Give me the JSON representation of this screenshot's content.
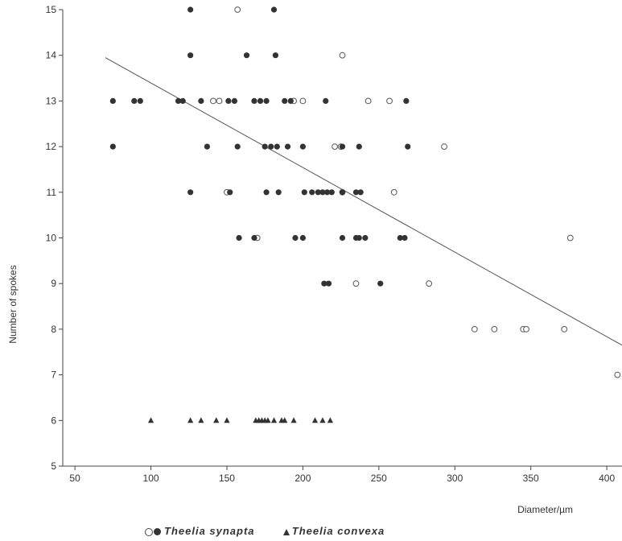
{
  "chart_data": {
    "type": "scatter",
    "title": "",
    "xlabel": "Diameter/µm",
    "ylabel": "Number of spokes",
    "xlim": [
      42,
      410
    ],
    "ylim": [
      5,
      15
    ],
    "x_ticks": [
      50,
      100,
      150,
      200,
      250,
      300,
      350,
      400
    ],
    "y_ticks": [
      5,
      6,
      7,
      8,
      9,
      10,
      11,
      12,
      13,
      14,
      15
    ],
    "grid": false,
    "legend_placement": "bottom",
    "legend": {
      "synapta_label": "Theelia synapta",
      "convexa_label": "Theelia convexa"
    },
    "trend_line": {
      "x": [
        70,
        410
      ],
      "y": [
        13.95,
        7.65
      ]
    },
    "series": [
      {
        "name": "Theelia synapta",
        "marker": "open-circle",
        "points": [
          [
            157,
            15
          ],
          [
            226,
            14
          ],
          [
            141,
            13
          ],
          [
            145,
            13
          ],
          [
            194,
            13
          ],
          [
            200,
            13
          ],
          [
            243,
            13
          ],
          [
            257,
            13
          ],
          [
            221,
            12
          ],
          [
            225,
            12
          ],
          [
            293,
            12
          ],
          [
            150,
            11
          ],
          [
            226,
            11
          ],
          [
            260,
            11
          ],
          [
            170,
            10
          ],
          [
            235,
            9
          ],
          [
            283,
            9
          ],
          [
            313,
            8
          ],
          [
            326,
            8
          ],
          [
            345,
            8
          ],
          [
            347,
            8
          ],
          [
            372,
            8
          ],
          [
            376,
            10
          ],
          [
            407,
            7
          ]
        ]
      },
      {
        "name": "Theelia synapta",
        "marker": "filled-circle",
        "points": [
          [
            126,
            15
          ],
          [
            181,
            15
          ],
          [
            126,
            14
          ],
          [
            163,
            14
          ],
          [
            182,
            14
          ],
          [
            75,
            13
          ],
          [
            89,
            13
          ],
          [
            93,
            13
          ],
          [
            118,
            13
          ],
          [
            121,
            13
          ],
          [
            133,
            13
          ],
          [
            151,
            13
          ],
          [
            155,
            13
          ],
          [
            168,
            13
          ],
          [
            172,
            13
          ],
          [
            176,
            13
          ],
          [
            188,
            13
          ],
          [
            192,
            13
          ],
          [
            215,
            13
          ],
          [
            268,
            13
          ],
          [
            75,
            12
          ],
          [
            137,
            12
          ],
          [
            157,
            12
          ],
          [
            175,
            12
          ],
          [
            179,
            12
          ],
          [
            183,
            12
          ],
          [
            190,
            12
          ],
          [
            200,
            12
          ],
          [
            226,
            12
          ],
          [
            237,
            12
          ],
          [
            269,
            12
          ],
          [
            126,
            11
          ],
          [
            152,
            11
          ],
          [
            176,
            11
          ],
          [
            184,
            11
          ],
          [
            201,
            11
          ],
          [
            206,
            11
          ],
          [
            210,
            11
          ],
          [
            213,
            11
          ],
          [
            216,
            11
          ],
          [
            219,
            11
          ],
          [
            226,
            11
          ],
          [
            235,
            11
          ],
          [
            238,
            11
          ],
          [
            158,
            10
          ],
          [
            168,
            10
          ],
          [
            195,
            10
          ],
          [
            200,
            10
          ],
          [
            226,
            10
          ],
          [
            235,
            10
          ],
          [
            237,
            10
          ],
          [
            241,
            10
          ],
          [
            264,
            10
          ],
          [
            267,
            10
          ],
          [
            214,
            9
          ],
          [
            217,
            9
          ],
          [
            251,
            9
          ]
        ]
      },
      {
        "name": "Theelia convexa",
        "marker": "filled-triangle",
        "points": [
          [
            100,
            6
          ],
          [
            126,
            6
          ],
          [
            133,
            6
          ],
          [
            143,
            6
          ],
          [
            150,
            6
          ],
          [
            169,
            6
          ],
          [
            171,
            6
          ],
          [
            173,
            6
          ],
          [
            175,
            6
          ],
          [
            177,
            6
          ],
          [
            181,
            6
          ],
          [
            186,
            6
          ],
          [
            188,
            6
          ],
          [
            194,
            6
          ],
          [
            208,
            6
          ],
          [
            213,
            6
          ],
          [
            218,
            6
          ]
        ]
      }
    ]
  }
}
